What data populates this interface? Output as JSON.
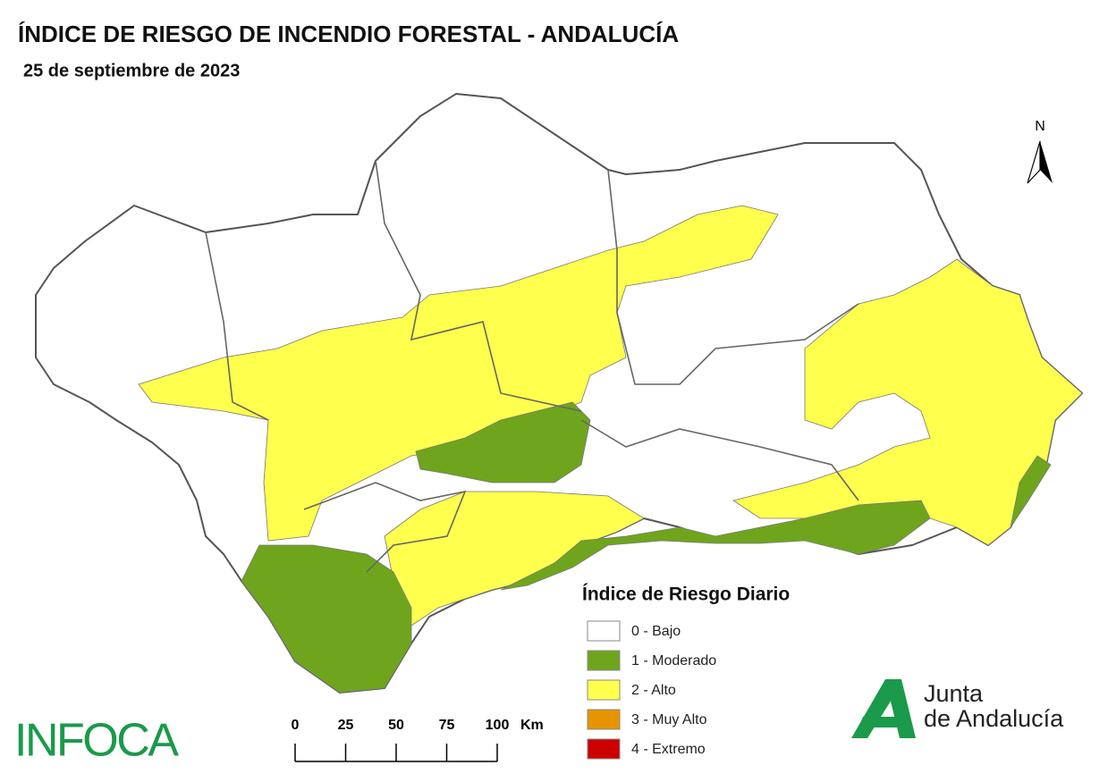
{
  "header": {
    "title": "ÍNDICE DE RIESGO DE INCENDIO FORESTAL - ANDALUCÍA",
    "date": "25 de septiembre de 2023"
  },
  "north": "N",
  "legend": {
    "title": "Índice de Riesgo Diario",
    "items": [
      {
        "label": "0 - Bajo",
        "color": "#ffffff"
      },
      {
        "label": "1 - Moderado",
        "color": "#6fa51c"
      },
      {
        "label": "2 - Alto",
        "color": "#ffff4d"
      },
      {
        "label": "3 - Muy Alto",
        "color": "#e69500"
      },
      {
        "label": "4 - Extremo",
        "color": "#cc0000"
      }
    ]
  },
  "scale": {
    "ticks": [
      0,
      25,
      50,
      75,
      100
    ],
    "unit": "Km"
  },
  "logos": {
    "infoca": "INFOCA",
    "junta": [
      "Junta",
      "de Andalucía"
    ]
  }
}
